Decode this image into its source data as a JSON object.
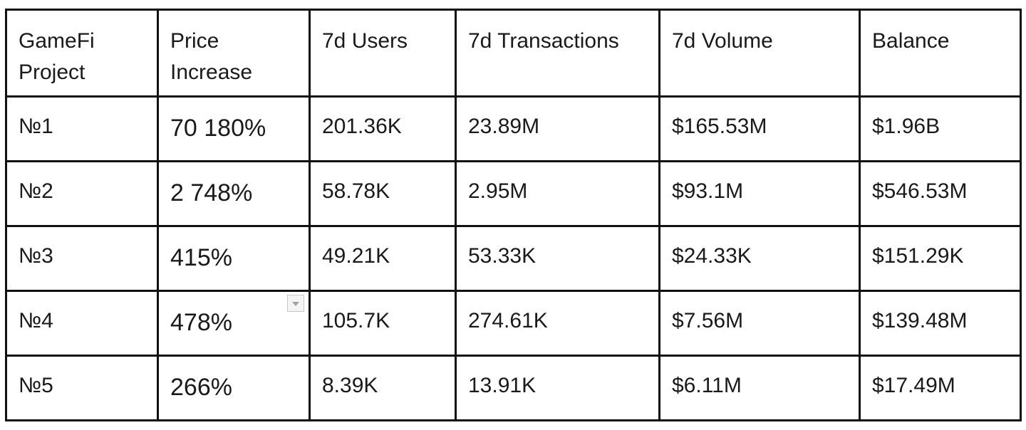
{
  "table": {
    "headers": [
      [
        "GameFi",
        "Project"
      ],
      [
        "Price",
        "Increase"
      ],
      [
        "7d Users"
      ],
      [
        "7d Transactions"
      ],
      [
        "7d Volume"
      ],
      [
        "Balance"
      ]
    ],
    "rows": [
      [
        "№1",
        "70 180%",
        "201.36K",
        "23.89M",
        "$165.53M",
        "$1.96B"
      ],
      [
        "№2",
        "2 748%",
        "58.78K",
        "2.95M",
        "$93.1M",
        "$546.53M"
      ],
      [
        "№3",
        "415%",
        "49.21K",
        "53.33K",
        "$24.33K",
        "$151.29K"
      ],
      [
        "№4",
        "478%",
        "105.7K",
        "274.61K",
        "$7.56M",
        "$139.48M"
      ],
      [
        "№5",
        "266%",
        "8.39K",
        "13.91K",
        "$6.11M",
        "$17.49M"
      ]
    ],
    "dropdown_icon": "chevron-down-icon"
  }
}
